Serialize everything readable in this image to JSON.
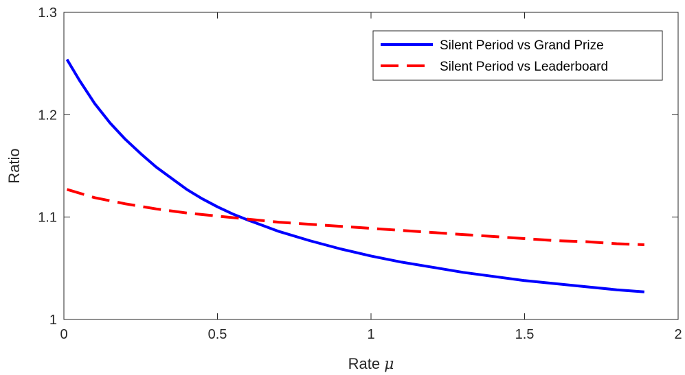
{
  "chart_data": {
    "type": "line",
    "xlabel": "Rate",
    "xlabel_symbol": "μ",
    "ylabel": "Ratio",
    "xlim": [
      0,
      2
    ],
    "ylim": [
      1,
      1.3
    ],
    "xticks": [
      0,
      0.5,
      1,
      1.5,
      2
    ],
    "xtick_labels": [
      "0",
      "0.5",
      "1",
      "1.5",
      "2"
    ],
    "yticks": [
      1,
      1.1,
      1.2,
      1.3
    ],
    "ytick_labels": [
      "1",
      "1.1",
      "1.2",
      "1.3"
    ],
    "grid": false,
    "legend_position": "top-right",
    "series": [
      {
        "name": "Silent Period vs Grand Prize",
        "color": "#0000ff",
        "style": "solid",
        "x": [
          0.01,
          0.05,
          0.1,
          0.15,
          0.2,
          0.25,
          0.3,
          0.35,
          0.4,
          0.45,
          0.5,
          0.55,
          0.6,
          0.7,
          0.8,
          0.9,
          1.0,
          1.1,
          1.2,
          1.3,
          1.4,
          1.5,
          1.6,
          1.7,
          1.8,
          1.89
        ],
        "y": [
          1.254,
          1.234,
          1.211,
          1.192,
          1.176,
          1.162,
          1.149,
          1.138,
          1.127,
          1.118,
          1.11,
          1.103,
          1.097,
          1.086,
          1.077,
          1.069,
          1.062,
          1.056,
          1.051,
          1.046,
          1.042,
          1.038,
          1.035,
          1.032,
          1.029,
          1.027
        ]
      },
      {
        "name": "Silent Period vs Leaderboard",
        "color": "#ff0000",
        "style": "dashed",
        "x": [
          0.01,
          0.1,
          0.2,
          0.3,
          0.4,
          0.5,
          0.6,
          0.7,
          0.8,
          0.9,
          1.0,
          1.1,
          1.2,
          1.3,
          1.4,
          1.5,
          1.6,
          1.7,
          1.8,
          1.89
        ],
        "y": [
          1.127,
          1.119,
          1.113,
          1.108,
          1.104,
          1.101,
          1.098,
          1.095,
          1.093,
          1.091,
          1.089,
          1.087,
          1.085,
          1.083,
          1.081,
          1.079,
          1.077,
          1.076,
          1.074,
          1.073
        ]
      }
    ]
  }
}
